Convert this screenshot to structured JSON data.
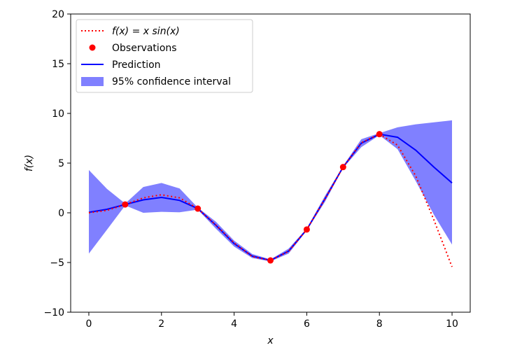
{
  "chart_data": {
    "type": "line",
    "title": "",
    "xlabel": "x",
    "ylabel": "f(x)",
    "xlim": [
      -0.5,
      10.5
    ],
    "ylim": [
      -10,
      20
    ],
    "xticks": [
      0,
      2,
      4,
      6,
      8,
      10
    ],
    "yticks": [
      -10,
      -5,
      0,
      5,
      10,
      15,
      20
    ],
    "xtick_labels": [
      "0",
      "2",
      "4",
      "6",
      "8",
      "10"
    ],
    "ytick_labels": [
      "−10",
      "−5",
      "0",
      "5",
      "10",
      "15",
      "20"
    ],
    "grid": false,
    "legend_position": "upper-left",
    "colors": {
      "true_function": "#ff0000",
      "observations": "#ff0000",
      "prediction": "#0000ff",
      "ci_fill": "#8080ff"
    },
    "legend": [
      {
        "label": "f(x) = x sin(x)",
        "style": "dotted-line"
      },
      {
        "label": "Observations",
        "style": "marker"
      },
      {
        "label": "Prediction",
        "style": "line"
      },
      {
        "label": "95% confidence interval",
        "style": "patch"
      }
    ],
    "series": [
      {
        "name": "f(x) = x sin(x)",
        "style": "dotted",
        "x": [
          0,
          0.5,
          1,
          1.5,
          2,
          2.5,
          3,
          3.5,
          4,
          4.5,
          5,
          5.5,
          6,
          6.5,
          7,
          7.5,
          8,
          8.5,
          9,
          9.5,
          10
        ],
        "y": [
          0,
          0.24,
          0.84,
          1.5,
          1.82,
          1.5,
          0.42,
          -1.23,
          -3.03,
          -4.4,
          -4.79,
          -3.88,
          -1.68,
          1.39,
          4.6,
          7.04,
          7.91,
          6.8,
          3.71,
          -0.72,
          -5.44
        ]
      },
      {
        "name": "Observations",
        "style": "markers",
        "x": [
          1,
          3,
          5,
          6,
          7,
          8
        ],
        "y": [
          0.84,
          0.42,
          -4.79,
          -1.68,
          4.6,
          7.91
        ]
      },
      {
        "name": "Prediction",
        "style": "solid",
        "x": [
          0,
          0.5,
          1,
          1.5,
          2,
          2.5,
          3,
          3.5,
          4,
          4.5,
          5,
          5.5,
          6,
          6.5,
          7,
          7.5,
          8,
          8.5,
          9,
          9.5,
          10
        ],
        "y": [
          0.05,
          0.35,
          0.84,
          1.3,
          1.55,
          1.25,
          0.42,
          -1.25,
          -3.1,
          -4.35,
          -4.79,
          -3.85,
          -1.68,
          1.4,
          4.6,
          7.0,
          7.91,
          7.6,
          6.3,
          4.6,
          3.0
        ]
      },
      {
        "name": "95% confidence interval",
        "style": "band",
        "x": [
          0,
          0.5,
          1,
          1.5,
          2,
          2.5,
          3,
          3.5,
          4,
          4.5,
          5,
          5.5,
          6,
          6.5,
          7,
          7.5,
          8,
          8.5,
          9,
          9.5,
          10
        ],
        "lower": [
          -4.1,
          -1.7,
          0.74,
          0.0,
          0.1,
          0.05,
          0.32,
          -1.6,
          -3.4,
          -4.55,
          -4.89,
          -4.1,
          -1.78,
          1.1,
          4.5,
          6.6,
          7.81,
          6.4,
          3.2,
          -0.2,
          -3.2
        ],
        "upper": [
          4.3,
          2.4,
          0.94,
          2.6,
          3.0,
          2.45,
          0.52,
          -0.9,
          -2.8,
          -4.15,
          -4.69,
          -3.6,
          -1.58,
          1.7,
          4.7,
          7.4,
          8.01,
          8.6,
          8.9,
          9.1,
          9.3
        ]
      }
    ]
  }
}
